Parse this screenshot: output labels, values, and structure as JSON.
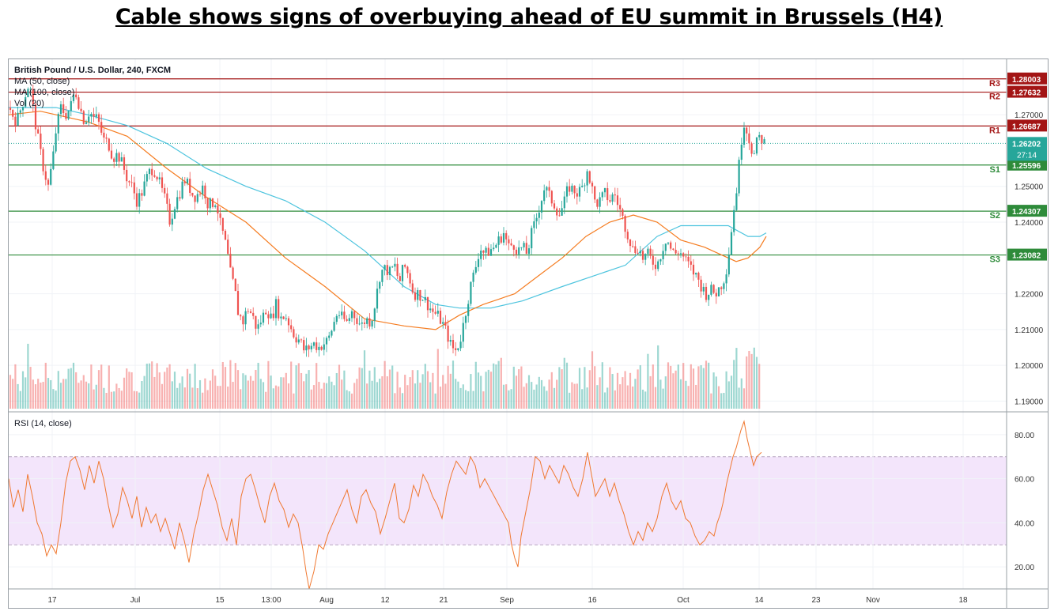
{
  "title": "Cable shows signs of overbuying ahead of EU summit in Brussels (H4)",
  "legend": {
    "symbol": "British Pound / U.S. Dollar, 240, FXCM",
    "ma50": "MA (50, close)",
    "ma100": "MA (100, close)",
    "vol": "Vol (20)",
    "rsi": "RSI (14, close)"
  },
  "colors": {
    "up": "#26a69a",
    "down": "#ef5350",
    "ma50": "#f57c20",
    "ma100": "#4dc4de",
    "resistance": "#a31515",
    "support": "#2e8b3a",
    "rsi": "#f07830",
    "rsi_band": "#f3e5fb"
  },
  "chart_data": {
    "type": "candlestick",
    "ylim": [
      1.187,
      1.2855
    ],
    "y_ticks": [
      "1.27000",
      "1.25000",
      "1.24000",
      "1.22000",
      "1.21000",
      "1.20000",
      "1.19000"
    ],
    "x_ticks": [
      "17",
      "Jul",
      "15",
      "13:00",
      "Aug",
      "12",
      "21",
      "Sep",
      "16",
      "Oct",
      "14",
      "23",
      "Nov",
      "18"
    ],
    "levels": [
      {
        "name": "R3",
        "value": 1.28003,
        "label": "1.28003",
        "kind": "resistance"
      },
      {
        "name": "R2",
        "value": 1.27632,
        "label": "1.27632",
        "kind": "resistance"
      },
      {
        "name": "R1",
        "value": 1.26687,
        "label": "1.26687",
        "kind": "resistance"
      },
      {
        "name": "S1",
        "value": 1.25596,
        "label": "1.25596",
        "kind": "support"
      },
      {
        "name": "S2",
        "value": 1.24307,
        "label": "1.24307",
        "kind": "support"
      },
      {
        "name": "S3",
        "value": 1.23082,
        "label": "1.23082",
        "kind": "support"
      }
    ],
    "last_price": {
      "value": 1.26202,
      "label": "1.26202",
      "countdown": "27:14"
    },
    "price_path": [
      [
        0,
        1.272
      ],
      [
        10,
        1.268
      ],
      [
        20,
        1.275
      ],
      [
        26,
        1.279
      ],
      [
        32,
        1.27
      ],
      [
        38,
        1.262
      ],
      [
        44,
        1.255
      ],
      [
        50,
        1.25
      ],
      [
        56,
        1.258
      ],
      [
        60,
        1.266
      ],
      [
        66,
        1.272
      ],
      [
        72,
        1.27
      ],
      [
        78,
        1.272
      ],
      [
        84,
        1.277
      ],
      [
        90,
        1.272
      ],
      [
        96,
        1.268
      ],
      [
        102,
        1.271
      ],
      [
        108,
        1.269
      ],
      [
        112,
        1.269
      ],
      [
        116,
        1.266
      ],
      [
        120,
        1.263
      ],
      [
        126,
        1.262
      ],
      [
        132,
        1.258
      ],
      [
        138,
        1.259
      ],
      [
        144,
        1.256
      ],
      [
        150,
        1.252
      ],
      [
        156,
        1.25
      ],
      [
        162,
        1.246
      ],
      [
        168,
        1.248
      ],
      [
        174,
        1.252
      ],
      [
        180,
        1.255
      ],
      [
        186,
        1.254
      ],
      [
        192,
        1.25
      ],
      [
        198,
        1.246
      ],
      [
        204,
        1.24
      ],
      [
        210,
        1.245
      ],
      [
        216,
        1.248
      ],
      [
        222,
        1.252
      ],
      [
        228,
        1.25
      ],
      [
        234,
        1.247
      ],
      [
        240,
        1.248
      ],
      [
        246,
        1.25
      ],
      [
        252,
        1.245
      ],
      [
        256,
        1.245
      ],
      [
        262,
        1.246
      ],
      [
        268,
        1.239
      ],
      [
        272,
        1.236
      ],
      [
        276,
        1.232
      ],
      [
        280,
        1.226
      ],
      [
        286,
        1.221
      ],
      [
        290,
        1.215
      ],
      [
        296,
        1.212
      ],
      [
        302,
        1.216
      ],
      [
        308,
        1.214
      ],
      [
        314,
        1.21
      ],
      [
        320,
        1.213
      ],
      [
        326,
        1.216
      ],
      [
        332,
        1.213
      ],
      [
        338,
        1.217
      ],
      [
        344,
        1.213
      ],
      [
        350,
        1.214
      ],
      [
        356,
        1.211
      ],
      [
        362,
        1.208
      ],
      [
        368,
        1.207
      ],
      [
        374,
        1.204
      ],
      [
        380,
        1.205
      ],
      [
        386,
        1.206
      ],
      [
        392,
        1.205
      ],
      [
        398,
        1.206
      ],
      [
        404,
        1.207
      ],
      [
        410,
        1.211
      ],
      [
        416,
        1.215
      ],
      [
        422,
        1.213
      ],
      [
        428,
        1.212
      ],
      [
        434,
        1.215
      ],
      [
        440,
        1.213
      ],
      [
        446,
        1.211
      ],
      [
        452,
        1.213
      ],
      [
        458,
        1.212
      ],
      [
        464,
        1.218
      ],
      [
        470,
        1.226
      ],
      [
        476,
        1.227
      ],
      [
        482,
        1.226
      ],
      [
        488,
        1.228
      ],
      [
        494,
        1.223
      ],
      [
        500,
        1.228
      ],
      [
        506,
        1.225
      ],
      [
        512,
        1.22
      ],
      [
        518,
        1.22
      ],
      [
        524,
        1.219
      ],
      [
        530,
        1.217
      ],
      [
        536,
        1.215
      ],
      [
        542,
        1.214
      ],
      [
        548,
        1.212
      ],
      [
        554,
        1.209
      ],
      [
        560,
        1.205
      ],
      [
        566,
        1.204
      ],
      [
        572,
        1.208
      ],
      [
        578,
        1.215
      ],
      [
        584,
        1.222
      ],
      [
        590,
        1.227
      ],
      [
        596,
        1.233
      ],
      [
        602,
        1.231
      ],
      [
        608,
        1.232
      ],
      [
        614,
        1.233
      ],
      [
        620,
        1.235
      ],
      [
        626,
        1.237
      ],
      [
        632,
        1.233
      ],
      [
        638,
        1.234
      ],
      [
        644,
        1.232
      ],
      [
        650,
        1.233
      ],
      [
        656,
        1.231
      ],
      [
        660,
        1.236
      ],
      [
        666,
        1.24
      ],
      [
        672,
        1.245
      ],
      [
        678,
        1.25
      ],
      [
        684,
        1.247
      ],
      [
        690,
        1.245
      ],
      [
        696,
        1.242
      ],
      [
        702,
        1.245
      ],
      [
        708,
        1.25
      ],
      [
        714,
        1.249
      ],
      [
        720,
        1.248
      ],
      [
        726,
        1.25
      ],
      [
        732,
        1.255
      ],
      [
        736,
        1.251
      ],
      [
        742,
        1.245
      ],
      [
        748,
        1.246
      ],
      [
        754,
        1.248
      ],
      [
        760,
        1.246
      ],
      [
        766,
        1.248
      ],
      [
        772,
        1.244
      ],
      [
        778,
        1.24
      ],
      [
        784,
        1.236
      ],
      [
        790,
        1.232
      ],
      [
        796,
        1.233
      ],
      [
        802,
        1.23
      ],
      [
        808,
        1.231
      ],
      [
        814,
        1.229
      ],
      [
        820,
        1.228
      ],
      [
        826,
        1.232
      ],
      [
        832,
        1.236
      ],
      [
        836,
        1.233
      ],
      [
        842,
        1.231
      ],
      [
        848,
        1.232
      ],
      [
        854,
        1.23
      ],
      [
        860,
        1.228
      ],
      [
        866,
        1.226
      ],
      [
        872,
        1.224
      ],
      [
        876,
        1.222
      ],
      [
        882,
        1.22
      ],
      [
        888,
        1.221
      ],
      [
        894,
        1.22
      ],
      [
        900,
        1.222
      ],
      [
        906,
        1.225
      ],
      [
        910,
        1.23
      ],
      [
        914,
        1.238
      ],
      [
        918,
        1.245
      ],
      [
        922,
        1.252
      ],
      [
        926,
        1.262
      ],
      [
        930,
        1.268
      ],
      [
        934,
        1.265
      ],
      [
        938,
        1.262
      ],
      [
        942,
        1.258
      ],
      [
        946,
        1.262
      ],
      [
        950,
        1.264
      ],
      [
        956,
        1.262
      ]
    ],
    "ma50_path": [
      [
        0,
        1.27
      ],
      [
        40,
        1.271
      ],
      [
        100,
        1.268
      ],
      [
        150,
        1.264
      ],
      [
        200,
        1.255
      ],
      [
        250,
        1.247
      ],
      [
        300,
        1.24
      ],
      [
        350,
        1.23
      ],
      [
        400,
        1.222
      ],
      [
        450,
        1.213
      ],
      [
        500,
        1.211
      ],
      [
        540,
        1.21
      ],
      [
        570,
        1.214
      ],
      [
        600,
        1.217
      ],
      [
        640,
        1.22
      ],
      [
        670,
        1.225
      ],
      [
        700,
        1.23
      ],
      [
        730,
        1.236
      ],
      [
        760,
        1.24
      ],
      [
        790,
        1.242
      ],
      [
        820,
        1.24
      ],
      [
        850,
        1.235
      ],
      [
        880,
        1.233
      ],
      [
        900,
        1.231
      ],
      [
        920,
        1.229
      ],
      [
        935,
        1.23
      ],
      [
        950,
        1.233
      ],
      [
        958,
        1.236
      ]
    ],
    "ma100_path": [
      [
        0,
        1.272
      ],
      [
        60,
        1.272
      ],
      [
        100,
        1.27
      ],
      [
        150,
        1.267
      ],
      [
        200,
        1.262
      ],
      [
        250,
        1.255
      ],
      [
        300,
        1.25
      ],
      [
        350,
        1.246
      ],
      [
        400,
        1.24
      ],
      [
        450,
        1.232
      ],
      [
        500,
        1.222
      ],
      [
        540,
        1.217
      ],
      [
        570,
        1.216
      ],
      [
        610,
        1.216
      ],
      [
        650,
        1.218
      ],
      [
        700,
        1.222
      ],
      [
        740,
        1.225
      ],
      [
        780,
        1.228
      ],
      [
        820,
        1.236
      ],
      [
        850,
        1.239
      ],
      [
        880,
        1.239
      ],
      [
        910,
        1.239
      ],
      [
        935,
        1.236
      ],
      [
        950,
        1.236
      ],
      [
        958,
        1.237
      ]
    ],
    "volume_ylim": [
      0,
      100
    ],
    "rsi": {
      "ylim": [
        10,
        90
      ],
      "ticks": [
        "80.00",
        "60.00",
        "40.00",
        "20.00"
      ],
      "overbought": 70,
      "oversold": 30,
      "path": [
        [
          0,
          60
        ],
        [
          6,
          47
        ],
        [
          12,
          55
        ],
        [
          18,
          45
        ],
        [
          24,
          62
        ],
        [
          30,
          52
        ],
        [
          36,
          40
        ],
        [
          42,
          35
        ],
        [
          48,
          25
        ],
        [
          54,
          30
        ],
        [
          60,
          26
        ],
        [
          66,
          40
        ],
        [
          72,
          58
        ],
        [
          78,
          68
        ],
        [
          84,
          70
        ],
        [
          90,
          64
        ],
        [
          96,
          55
        ],
        [
          102,
          66
        ],
        [
          108,
          58
        ],
        [
          114,
          68
        ],
        [
          120,
          60
        ],
        [
          126,
          48
        ],
        [
          132,
          38
        ],
        [
          138,
          44
        ],
        [
          144,
          56
        ],
        [
          150,
          50
        ],
        [
          156,
          42
        ],
        [
          162,
          52
        ],
        [
          168,
          38
        ],
        [
          174,
          47
        ],
        [
          180,
          40
        ],
        [
          186,
          44
        ],
        [
          192,
          36
        ],
        [
          198,
          42
        ],
        [
          204,
          35
        ],
        [
          210,
          28
        ],
        [
          216,
          40
        ],
        [
          222,
          32
        ],
        [
          228,
          22
        ],
        [
          234,
          35
        ],
        [
          240,
          44
        ],
        [
          246,
          55
        ],
        [
          252,
          62
        ],
        [
          258,
          55
        ],
        [
          264,
          48
        ],
        [
          270,
          38
        ],
        [
          276,
          32
        ],
        [
          282,
          42
        ],
        [
          288,
          30
        ],
        [
          294,
          52
        ],
        [
          300,
          60
        ],
        [
          306,
          62
        ],
        [
          312,
          55
        ],
        [
          318,
          47
        ],
        [
          324,
          40
        ],
        [
          330,
          52
        ],
        [
          336,
          58
        ],
        [
          342,
          50
        ],
        [
          348,
          46
        ],
        [
          354,
          38
        ],
        [
          360,
          44
        ],
        [
          366,
          40
        ],
        [
          372,
          28
        ],
        [
          376,
          18
        ],
        [
          380,
          10
        ],
        [
          386,
          18
        ],
        [
          392,
          30
        ],
        [
          398,
          28
        ],
        [
          404,
          35
        ],
        [
          410,
          40
        ],
        [
          416,
          45
        ],
        [
          422,
          50
        ],
        [
          428,
          55
        ],
        [
          434,
          46
        ],
        [
          440,
          40
        ],
        [
          446,
          52
        ],
        [
          452,
          55
        ],
        [
          458,
          49
        ],
        [
          464,
          45
        ],
        [
          470,
          35
        ],
        [
          476,
          42
        ],
        [
          482,
          50
        ],
        [
          488,
          58
        ],
        [
          494,
          42
        ],
        [
          500,
          40
        ],
        [
          506,
          46
        ],
        [
          512,
          57
        ],
        [
          518,
          52
        ],
        [
          524,
          62
        ],
        [
          530,
          58
        ],
        [
          536,
          52
        ],
        [
          542,
          48
        ],
        [
          548,
          42
        ],
        [
          554,
          54
        ],
        [
          560,
          62
        ],
        [
          566,
          68
        ],
        [
          572,
          65
        ],
        [
          578,
          62
        ],
        [
          584,
          70
        ],
        [
          590,
          66
        ],
        [
          596,
          56
        ],
        [
          602,
          60
        ],
        [
          608,
          56
        ],
        [
          614,
          52
        ],
        [
          620,
          48
        ],
        [
          626,
          44
        ],
        [
          632,
          40
        ],
        [
          636,
          30
        ],
        [
          640,
          24
        ],
        [
          644,
          20
        ],
        [
          648,
          34
        ],
        [
          654,
          45
        ],
        [
          660,
          56
        ],
        [
          666,
          70
        ],
        [
          672,
          68
        ],
        [
          678,
          60
        ],
        [
          684,
          66
        ],
        [
          690,
          62
        ],
        [
          696,
          58
        ],
        [
          702,
          66
        ],
        [
          708,
          62
        ],
        [
          714,
          56
        ],
        [
          720,
          52
        ],
        [
          726,
          60
        ],
        [
          732,
          72
        ],
        [
          736,
          64
        ],
        [
          742,
          52
        ],
        [
          748,
          56
        ],
        [
          754,
          60
        ],
        [
          760,
          52
        ],
        [
          766,
          58
        ],
        [
          772,
          50
        ],
        [
          778,
          44
        ],
        [
          784,
          36
        ],
        [
          790,
          30
        ],
        [
          796,
          36
        ],
        [
          802,
          32
        ],
        [
          808,
          40
        ],
        [
          814,
          36
        ],
        [
          820,
          42
        ],
        [
          826,
          52
        ],
        [
          832,
          58
        ],
        [
          838,
          50
        ],
        [
          844,
          46
        ],
        [
          850,
          50
        ],
        [
          856,
          42
        ],
        [
          862,
          40
        ],
        [
          868,
          34
        ],
        [
          874,
          30
        ],
        [
          880,
          32
        ],
        [
          886,
          36
        ],
        [
          892,
          34
        ],
        [
          896,
          40
        ],
        [
          900,
          44
        ],
        [
          904,
          50
        ],
        [
          908,
          58
        ],
        [
          912,
          64
        ],
        [
          916,
          70
        ],
        [
          920,
          74
        ],
        [
          926,
          82
        ],
        [
          930,
          86
        ],
        [
          934,
          78
        ],
        [
          938,
          72
        ],
        [
          942,
          66
        ],
        [
          946,
          70
        ],
        [
          952,
          72
        ]
      ]
    }
  }
}
